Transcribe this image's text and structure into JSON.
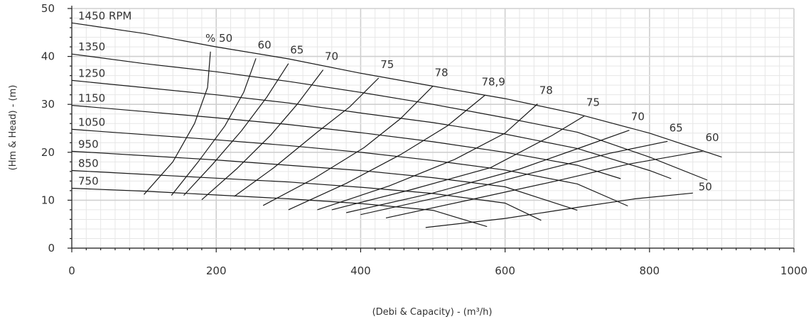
{
  "chart_data": {
    "type": "line",
    "xlabel": "(Debi & Capacity) - (m³/h)",
    "ylabel": "(Hm & Head) - (m)",
    "xlim": [
      0,
      1000
    ],
    "ylim": [
      0,
      50
    ],
    "x_ticks": [
      "0",
      "200",
      "400",
      "600",
      "800",
      "1000"
    ],
    "y_ticks": [
      "0",
      "10",
      "20",
      "30",
      "40",
      "50"
    ],
    "grid": true,
    "speed_curves": [
      {
        "label": "1450 RPM",
        "points": [
          [
            0,
            47
          ],
          [
            100,
            44.8
          ],
          [
            200,
            42.0
          ],
          [
            300,
            39.5
          ],
          [
            400,
            36.5
          ],
          [
            500,
            33.8
          ],
          [
            600,
            31.2
          ],
          [
            700,
            28.0
          ],
          [
            800,
            24.0
          ],
          [
            900,
            19.0
          ]
        ]
      },
      {
        "label": "1350",
        "points": [
          [
            0,
            40.5
          ],
          [
            100,
            38.5
          ],
          [
            200,
            36.8
          ],
          [
            300,
            34.8
          ],
          [
            400,
            32.5
          ],
          [
            500,
            30.0
          ],
          [
            600,
            27.2
          ],
          [
            700,
            24.2
          ],
          [
            800,
            19.0
          ],
          [
            880,
            14.2
          ]
        ]
      },
      {
        "label": "1250",
        "points": [
          [
            0,
            35.0
          ],
          [
            100,
            33.5
          ],
          [
            200,
            32.0
          ],
          [
            300,
            30.3
          ],
          [
            400,
            28.2
          ],
          [
            500,
            26.2
          ],
          [
            600,
            23.8
          ],
          [
            700,
            20.8
          ],
          [
            800,
            16.2
          ],
          [
            830,
            14.5
          ]
        ]
      },
      {
        "label": "1150",
        "points": [
          [
            0,
            29.8
          ],
          [
            100,
            28.5
          ],
          [
            200,
            27.2
          ],
          [
            300,
            25.8
          ],
          [
            400,
            24.1
          ],
          [
            500,
            22.2
          ],
          [
            600,
            20.0
          ],
          [
            700,
            17.3
          ],
          [
            760,
            14.5
          ]
        ]
      },
      {
        "label": "1050",
        "points": [
          [
            0,
            24.8
          ],
          [
            100,
            23.7
          ],
          [
            200,
            22.6
          ],
          [
            300,
            21.4
          ],
          [
            400,
            20.0
          ],
          [
            500,
            18.3
          ],
          [
            600,
            16.3
          ],
          [
            700,
            13.4
          ],
          [
            770,
            8.8
          ]
        ]
      },
      {
        "label": "950",
        "points": [
          [
            0,
            20.2
          ],
          [
            100,
            19.3
          ],
          [
            200,
            18.4
          ],
          [
            300,
            17.3
          ],
          [
            400,
            16.2
          ],
          [
            500,
            14.7
          ],
          [
            600,
            12.8
          ],
          [
            700,
            7.9
          ]
        ]
      },
      {
        "label": "850",
        "points": [
          [
            0,
            16.2
          ],
          [
            100,
            15.4
          ],
          [
            200,
            14.6
          ],
          [
            300,
            13.8
          ],
          [
            400,
            12.7
          ],
          [
            500,
            11.4
          ],
          [
            600,
            9.4
          ],
          [
            650,
            5.8
          ]
        ]
      },
      {
        "label": "750",
        "points": [
          [
            0,
            12.5
          ],
          [
            100,
            11.9
          ],
          [
            200,
            11.1
          ],
          [
            300,
            10.3
          ],
          [
            400,
            9.3
          ],
          [
            500,
            7.9
          ],
          [
            575,
            4.5
          ]
        ]
      }
    ],
    "efficiency_curves": [
      {
        "label": "% 50",
        "points": [
          [
            100,
            11.2
          ],
          [
            140,
            18.0
          ],
          [
            170,
            26.0
          ],
          [
            188,
            33.5
          ],
          [
            192,
            41.0
          ]
        ]
      },
      {
        "label": "60",
        "points": [
          [
            138,
            11.0
          ],
          [
            175,
            18.0
          ],
          [
            212,
            25.5
          ],
          [
            238,
            32.5
          ],
          [
            255,
            39.6
          ]
        ]
      },
      {
        "label": "65",
        "points": [
          [
            155,
            11.0
          ],
          [
            195,
            17.5
          ],
          [
            235,
            24.5
          ],
          [
            270,
            31.5
          ],
          [
            300,
            38.5
          ]
        ]
      },
      {
        "label": "70",
        "points": [
          [
            180,
            10.1
          ],
          [
            228,
            16.5
          ],
          [
            275,
            23.5
          ],
          [
            312,
            30.0
          ],
          [
            348,
            37.2
          ]
        ]
      },
      {
        "label": "75",
        "points": [
          [
            225,
            10.8
          ],
          [
            280,
            16.8
          ],
          [
            340,
            24.2
          ],
          [
            385,
            29.5
          ],
          [
            425,
            35.5
          ]
        ]
      },
      {
        "label": "78",
        "points": [
          [
            265,
            8.9
          ],
          [
            335,
            14.5
          ],
          [
            405,
            21.0
          ],
          [
            455,
            27.0
          ],
          [
            500,
            33.8
          ]
        ]
      },
      {
        "label": "78,9",
        "points": [
          [
            300,
            8.0
          ],
          [
            380,
            13.5
          ],
          [
            455,
            19.5
          ],
          [
            520,
            25.5
          ],
          [
            572,
            31.9
          ]
        ]
      },
      {
        "label": "78",
        "points": [
          [
            340,
            8.0
          ],
          [
            440,
            13.0
          ],
          [
            530,
            18.5
          ],
          [
            600,
            24.0
          ],
          [
            645,
            30.1
          ]
        ]
      },
      {
        "label": "75",
        "points": [
          [
            360,
            8.0
          ],
          [
            470,
            12.2
          ],
          [
            580,
            16.8
          ],
          [
            665,
            23.5
          ],
          [
            710,
            27.6
          ]
        ]
      },
      {
        "label": "70",
        "points": [
          [
            380,
            7.4
          ],
          [
            500,
            11.5
          ],
          [
            620,
            16.5
          ],
          [
            705,
            21.0
          ],
          [
            772,
            24.6
          ]
        ]
      },
      {
        "label": "65",
        "points": [
          [
            400,
            7.0
          ],
          [
            520,
            11.0
          ],
          [
            640,
            15.8
          ],
          [
            745,
            19.8
          ],
          [
            825,
            22.3
          ]
        ]
      },
      {
        "label": "60",
        "points": [
          [
            435,
            6.3
          ],
          [
            555,
            10.2
          ],
          [
            670,
            14.0
          ],
          [
            770,
            17.5
          ],
          [
            875,
            20.3
          ]
        ]
      },
      {
        "label": "50",
        "points": [
          [
            490,
            4.3
          ],
          [
            600,
            6.2
          ],
          [
            700,
            8.5
          ],
          [
            780,
            10.3
          ],
          [
            860,
            11.5
          ]
        ]
      }
    ]
  }
}
